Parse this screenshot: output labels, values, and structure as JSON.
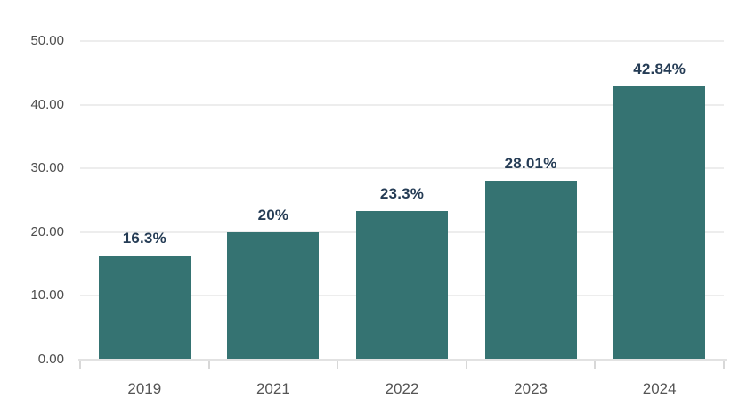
{
  "chart_data": {
    "type": "bar",
    "title": "",
    "xlabel": "",
    "ylabel": "",
    "categories": [
      "2019",
      "2021",
      "2022",
      "2023",
      "2024"
    ],
    "values": [
      16.3,
      20,
      23.3,
      28.01,
      42.84
    ],
    "value_labels": [
      "16.3%",
      "20%",
      "23.3%",
      "28.01%",
      "42.84%"
    ],
    "ylim": [
      0,
      50
    ],
    "y_ticks": [
      0,
      10,
      20,
      30,
      40,
      50
    ],
    "y_tick_labels": [
      "0.00",
      "10.00",
      "20.00",
      "30.00",
      "40.00",
      "50.00"
    ],
    "grid": true,
    "legend": false,
    "colors": {
      "bar": "#357372",
      "data_label": "#253C55",
      "y_axis_text": "#4D4D4D",
      "x_axis_text": "#555555",
      "gridline": "#EDEDED",
      "axis_line": "#E2E2E2",
      "tick_mark": "#D8D8D8",
      "background": "#FFFFFF"
    }
  }
}
